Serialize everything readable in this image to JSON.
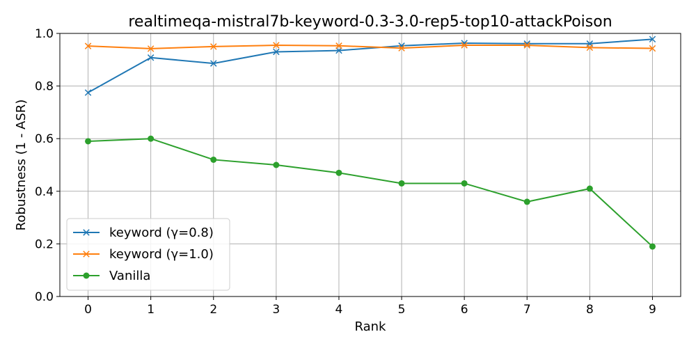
{
  "chart_data": {
    "type": "line",
    "title": "realtimeqa-mistral7b-keyword-0.3-3.0-rep5-top10-attackPoison",
    "xlabel": "Rank",
    "ylabel": "Robustness (1 - ASR)",
    "x": [
      0,
      1,
      2,
      3,
      4,
      5,
      6,
      7,
      8,
      9
    ],
    "xticks": [
      "0",
      "1",
      "2",
      "3",
      "4",
      "5",
      "6",
      "7",
      "8",
      "9"
    ],
    "xlim": [
      -0.45,
      9.45
    ],
    "ylim": [
      0.0,
      1.0
    ],
    "yticks": [
      "0.0",
      "0.2",
      "0.4",
      "0.6",
      "0.8",
      "1.0"
    ],
    "grid": true,
    "legend_position": "lower-left",
    "series": [
      {
        "name": "keyword (γ=0.8)",
        "color": "#1f77b4",
        "marker": "x",
        "values": [
          0.775,
          0.908,
          0.886,
          0.93,
          0.935,
          0.953,
          0.963,
          0.961,
          0.961,
          0.978
        ]
      },
      {
        "name": "keyword (γ=1.0)",
        "color": "#ff7f0e",
        "marker": "x",
        "values": [
          0.952,
          0.942,
          0.95,
          0.955,
          0.953,
          0.944,
          0.955,
          0.955,
          0.946,
          0.943
        ]
      },
      {
        "name": "Vanilla",
        "color": "#2ca02c",
        "marker": "o",
        "values": [
          0.59,
          0.6,
          0.52,
          0.5,
          0.47,
          0.43,
          0.43,
          0.36,
          0.41,
          0.19
        ]
      }
    ]
  }
}
